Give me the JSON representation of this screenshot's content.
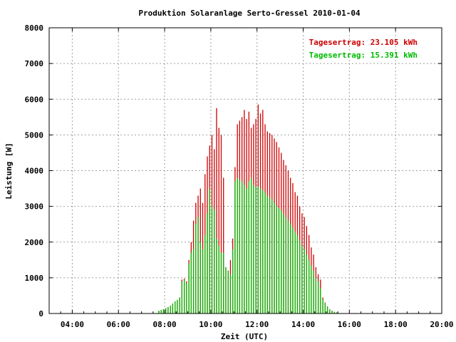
{
  "chart_data": {
    "type": "bar",
    "title": "Produktion Solaranlage Serto-Gressel 2010-01-04",
    "xlabel": "Zeit (UTC)",
    "ylabel": "Leistung [W]",
    "x_ticks": [
      "04:00",
      "06:00",
      "08:00",
      "10:00",
      "12:00",
      "14:00",
      "16:00",
      "18:00",
      "20:00"
    ],
    "y_ticks": [
      "0",
      "1000",
      "2000",
      "3000",
      "4000",
      "5000",
      "6000",
      "7000",
      "8000"
    ],
    "xlim_hours": [
      3.0,
      20.0
    ],
    "ylim": [
      0,
      8000
    ],
    "grid": true,
    "legend_position": "top-right",
    "colors": {
      "series_1": "#cc0000",
      "series_2": "#00bb00"
    },
    "x_hours": [
      7.75,
      7.85,
      7.95,
      8.05,
      8.15,
      8.25,
      8.35,
      8.45,
      8.55,
      8.65,
      8.75,
      8.85,
      8.95,
      9.05,
      9.15,
      9.25,
      9.35,
      9.45,
      9.55,
      9.65,
      9.75,
      9.85,
      9.95,
      10.05,
      10.15,
      10.25,
      10.35,
      10.45,
      10.55,
      10.65,
      10.75,
      10.85,
      10.95,
      11.05,
      11.15,
      11.25,
      11.35,
      11.45,
      11.55,
      11.65,
      11.75,
      11.85,
      11.95,
      12.05,
      12.15,
      12.25,
      12.35,
      12.45,
      12.55,
      12.65,
      12.75,
      12.85,
      12.95,
      13.05,
      13.15,
      13.25,
      13.35,
      13.45,
      13.55,
      13.65,
      13.75,
      13.85,
      13.95,
      14.05,
      14.15,
      14.25,
      14.35,
      14.45,
      14.55,
      14.65,
      14.75,
      14.85,
      14.95,
      15.05,
      15.15,
      15.25,
      15.35,
      15.45
    ],
    "series": [
      {
        "name": "Tagesertrag: 23.105 kWh",
        "values": [
          80,
          100,
          120,
          150,
          180,
          220,
          280,
          340,
          380,
          450,
          950,
          980,
          900,
          1500,
          2000,
          2600,
          3100,
          3300,
          3500,
          3100,
          3900,
          4400,
          4700,
          5000,
          4600,
          5750,
          5200,
          5000,
          3800,
          1300,
          1200,
          1500,
          2100,
          4100,
          5300,
          5400,
          5500,
          5700,
          5450,
          5650,
          5200,
          5300,
          5450,
          5850,
          5600,
          5700,
          5300,
          5100,
          5050,
          5000,
          4900,
          4800,
          4650,
          4500,
          4300,
          4150,
          4000,
          3800,
          3650,
          3400,
          3300,
          3000,
          2800,
          2700,
          2450,
          2200,
          1850,
          1650,
          1300,
          1100,
          950,
          450,
          310,
          200,
          120,
          80,
          50,
          30
        ]
      },
      {
        "name": "Tagesertrag: 15.391 kWh",
        "values": [
          80,
          100,
          120,
          150,
          180,
          220,
          280,
          340,
          380,
          450,
          900,
          950,
          850,
          1400,
          1700,
          1800,
          2500,
          2700,
          2000,
          1800,
          2200,
          2800,
          3500,
          3000,
          2900,
          2100,
          1900,
          1700,
          1700,
          1300,
          1200,
          1100,
          1800,
          3700,
          3800,
          3750,
          3700,
          3600,
          3500,
          3700,
          3800,
          3600,
          3550,
          3550,
          3500,
          3450,
          3400,
          3300,
          3250,
          3200,
          3100,
          3000,
          2950,
          2900,
          2800,
          2700,
          2600,
          2500,
          2400,
          2300,
          2200,
          2050,
          1900,
          1800,
          1650,
          1500,
          1350,
          1200,
          1000,
          900,
          700,
          400,
          300,
          200,
          120,
          80,
          50,
          30
        ]
      }
    ]
  }
}
